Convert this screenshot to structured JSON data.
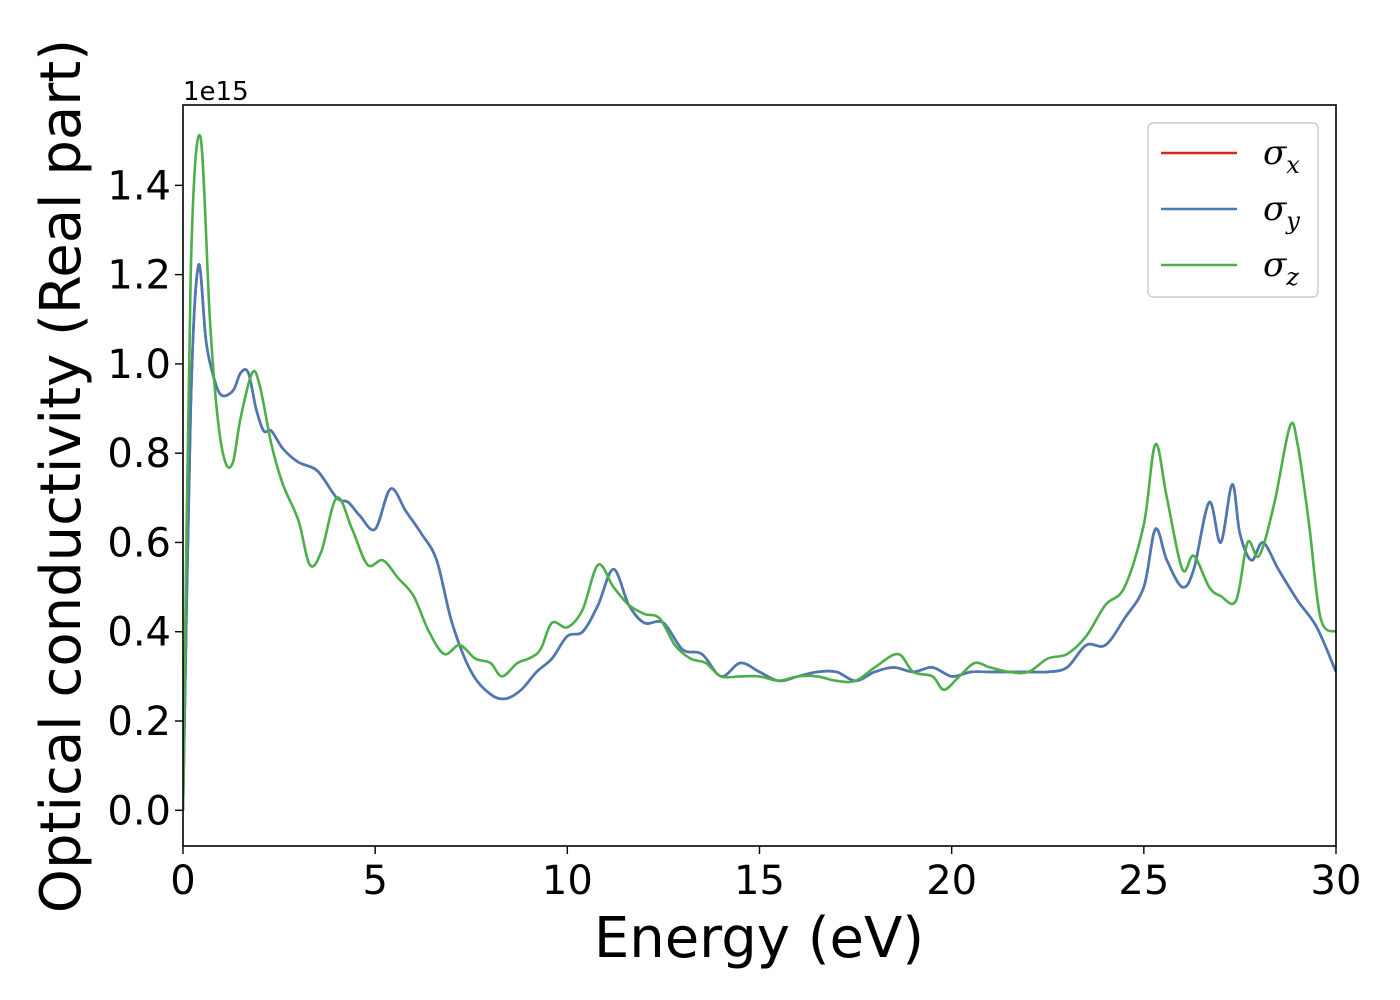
{
  "chart_data": {
    "type": "line",
    "xlabel": "Energy (eV)",
    "ylabel": "Optical conductivity (Real part)",
    "offset_text": "1e15",
    "xlim": [
      0,
      30
    ],
    "ylim": [
      -0.08,
      1.58
    ],
    "x_ticks": [
      0,
      5,
      10,
      15,
      20,
      25,
      30
    ],
    "y_ticks": [
      0.0,
      0.2,
      0.4,
      0.6,
      0.8,
      1.0,
      1.2,
      1.4
    ],
    "x_tick_labels": [
      "0",
      "5",
      "10",
      "15",
      "20",
      "25",
      "30"
    ],
    "y_tick_labels": [
      "0.0",
      "0.2",
      "0.4",
      "0.6",
      "0.8",
      "1.0",
      "1.2",
      "1.4"
    ],
    "grid": false,
    "legend_position": "top-right",
    "series": [
      {
        "name": "σx",
        "symbol": "σ",
        "subscript": "x",
        "color": "#d62728",
        "x": [
          0,
          0.2,
          0.4,
          0.6,
          0.8,
          1.0,
          1.3,
          1.5,
          1.7,
          1.9,
          2.1,
          2.3,
          2.6,
          3.0,
          3.5,
          4.0,
          4.3,
          4.6,
          5.0,
          5.4,
          5.8,
          6.2,
          6.6,
          7.0,
          7.5,
          8.0,
          8.4,
          8.8,
          9.2,
          9.6,
          10.0,
          10.4,
          10.8,
          11.2,
          11.6,
          12.0,
          12.5,
          13.0,
          13.5,
          14.0,
          14.5,
          15.0,
          15.5,
          16.0,
          16.5,
          17.0,
          17.5,
          18.0,
          18.5,
          19.0,
          19.5,
          20.0,
          20.5,
          21.0,
          21.5,
          22.0,
          22.5,
          23.0,
          23.5,
          24.0,
          24.5,
          25.0,
          25.3,
          25.6,
          26.0,
          26.3,
          26.7,
          27.0,
          27.3,
          27.5,
          27.8,
          28.1,
          28.5,
          29.0,
          29.5,
          30.0
        ],
        "y": [
          0.0,
          0.9,
          1.22,
          1.05,
          0.97,
          0.93,
          0.94,
          0.98,
          0.98,
          0.9,
          0.85,
          0.85,
          0.81,
          0.78,
          0.76,
          0.7,
          0.69,
          0.66,
          0.63,
          0.72,
          0.67,
          0.62,
          0.56,
          0.42,
          0.31,
          0.26,
          0.25,
          0.27,
          0.31,
          0.34,
          0.39,
          0.4,
          0.46,
          0.54,
          0.46,
          0.42,
          0.42,
          0.36,
          0.35,
          0.3,
          0.33,
          0.31,
          0.29,
          0.3,
          0.31,
          0.31,
          0.29,
          0.31,
          0.32,
          0.31,
          0.32,
          0.3,
          0.31,
          0.31,
          0.31,
          0.31,
          0.31,
          0.32,
          0.37,
          0.37,
          0.43,
          0.5,
          0.63,
          0.56,
          0.5,
          0.54,
          0.69,
          0.6,
          0.73,
          0.62,
          0.56,
          0.6,
          0.54,
          0.47,
          0.41,
          0.31
        ]
      },
      {
        "name": "σy",
        "symbol": "σ",
        "subscript": "y",
        "color": "#4a7ab5",
        "x": [
          0,
          0.2,
          0.4,
          0.6,
          0.8,
          1.0,
          1.3,
          1.5,
          1.7,
          1.9,
          2.1,
          2.3,
          2.6,
          3.0,
          3.5,
          4.0,
          4.3,
          4.6,
          5.0,
          5.4,
          5.8,
          6.2,
          6.6,
          7.0,
          7.5,
          8.0,
          8.4,
          8.8,
          9.2,
          9.6,
          10.0,
          10.4,
          10.8,
          11.2,
          11.6,
          12.0,
          12.5,
          13.0,
          13.5,
          14.0,
          14.5,
          15.0,
          15.5,
          16.0,
          16.5,
          17.0,
          17.5,
          18.0,
          18.5,
          19.0,
          19.5,
          20.0,
          20.5,
          21.0,
          21.5,
          22.0,
          22.5,
          23.0,
          23.5,
          24.0,
          24.5,
          25.0,
          25.3,
          25.6,
          26.0,
          26.3,
          26.7,
          27.0,
          27.3,
          27.5,
          27.8,
          28.1,
          28.5,
          29.0,
          29.5,
          30.0
        ],
        "y": [
          0.0,
          0.9,
          1.22,
          1.05,
          0.97,
          0.93,
          0.94,
          0.98,
          0.98,
          0.9,
          0.85,
          0.85,
          0.81,
          0.78,
          0.76,
          0.7,
          0.69,
          0.66,
          0.63,
          0.72,
          0.67,
          0.62,
          0.56,
          0.42,
          0.31,
          0.26,
          0.25,
          0.27,
          0.31,
          0.34,
          0.39,
          0.4,
          0.46,
          0.54,
          0.46,
          0.42,
          0.42,
          0.36,
          0.35,
          0.3,
          0.33,
          0.31,
          0.29,
          0.3,
          0.31,
          0.31,
          0.29,
          0.31,
          0.32,
          0.31,
          0.32,
          0.3,
          0.31,
          0.31,
          0.31,
          0.31,
          0.31,
          0.32,
          0.37,
          0.37,
          0.43,
          0.5,
          0.63,
          0.56,
          0.5,
          0.54,
          0.69,
          0.6,
          0.73,
          0.62,
          0.56,
          0.6,
          0.54,
          0.47,
          0.41,
          0.31
        ]
      },
      {
        "name": "σz",
        "symbol": "σ",
        "subscript": "z",
        "color": "#4daf4a",
        "x": [
          0,
          0.2,
          0.45,
          0.7,
          0.9,
          1.1,
          1.3,
          1.5,
          1.8,
          2.0,
          2.3,
          2.6,
          3.0,
          3.3,
          3.6,
          4.0,
          4.4,
          4.8,
          5.2,
          5.6,
          6.0,
          6.4,
          6.8,
          7.2,
          7.6,
          8.0,
          8.3,
          8.7,
          9.0,
          9.3,
          9.6,
          10.0,
          10.4,
          10.8,
          11.2,
          11.6,
          12.0,
          12.4,
          12.8,
          13.2,
          13.6,
          14.0,
          14.5,
          15.0,
          15.5,
          16.0,
          16.5,
          17.0,
          17.5,
          18.0,
          18.6,
          19.0,
          19.5,
          19.8,
          20.2,
          20.6,
          21.0,
          21.5,
          22.0,
          22.5,
          23.0,
          23.5,
          24.0,
          24.5,
          25.0,
          25.3,
          25.6,
          26.0,
          26.3,
          26.7,
          27.0,
          27.4,
          27.7,
          28.0,
          28.4,
          28.8,
          29.0,
          29.3,
          29.6,
          30.0
        ],
        "y": [
          0.0,
          1.2,
          1.51,
          1.1,
          0.88,
          0.78,
          0.78,
          0.88,
          0.98,
          0.95,
          0.82,
          0.73,
          0.65,
          0.55,
          0.58,
          0.7,
          0.63,
          0.55,
          0.56,
          0.52,
          0.48,
          0.4,
          0.35,
          0.37,
          0.34,
          0.33,
          0.3,
          0.33,
          0.34,
          0.36,
          0.42,
          0.41,
          0.45,
          0.55,
          0.5,
          0.46,
          0.44,
          0.43,
          0.37,
          0.34,
          0.33,
          0.3,
          0.3,
          0.3,
          0.29,
          0.3,
          0.3,
          0.29,
          0.29,
          0.32,
          0.35,
          0.31,
          0.3,
          0.27,
          0.3,
          0.33,
          0.32,
          0.31,
          0.31,
          0.34,
          0.35,
          0.39,
          0.46,
          0.5,
          0.64,
          0.82,
          0.7,
          0.54,
          0.57,
          0.5,
          0.48,
          0.47,
          0.6,
          0.57,
          0.69,
          0.86,
          0.82,
          0.64,
          0.43,
          0.4
        ]
      }
    ]
  }
}
